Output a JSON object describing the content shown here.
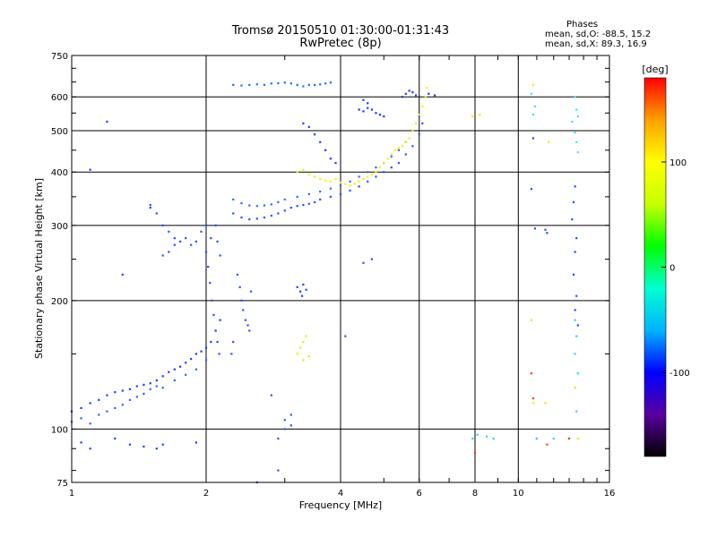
{
  "chart_data": {
    "type": "scatter",
    "title": "Tromsø 20150510 01:30:00-01:31:43",
    "subtitle": "RwPretec (8p)",
    "xlabel": "Frequency [MHz]",
    "ylabel": "Stationary phase Virtual Height [km]",
    "x_scale": "log",
    "y_scale": "log",
    "xlim": [
      1,
      16
    ],
    "ylim": [
      75,
      750
    ],
    "x_ticks": [
      "1",
      "2",
      "4",
      "6",
      "8",
      "10",
      "16"
    ],
    "y_ticks": [
      "75",
      "100",
      "200",
      "300",
      "400",
      "500",
      "600",
      "750"
    ],
    "grid": true,
    "phase_stats": {
      "header": "Phases",
      "o_line": "mean, sd,O: -88.5, 15.2",
      "x_line": "mean, sd,X: 89.3, 16.9"
    },
    "colorbar": {
      "label": "[deg]",
      "range": [
        -180,
        180
      ],
      "ticks": [
        "100",
        "0",
        "-100"
      ],
      "colors": [
        "#000000",
        "#5a00a0",
        "#0000ff",
        "#00b4ff",
        "#00ffd0",
        "#00ff00",
        "#c8ff00",
        "#ffff00",
        "#ffa000",
        "#ff0000"
      ]
    },
    "traces": [
      {
        "name": "",
        "color": "#1a3cff",
        "points": [
          [
            1.0,
            110
          ],
          [
            1.05,
            112
          ],
          [
            1.1,
            115
          ],
          [
            1.15,
            117
          ],
          [
            1.2,
            120
          ],
          [
            1.25,
            122
          ],
          [
            1.3,
            123
          ],
          [
            1.35,
            124
          ],
          [
            1.4,
            126
          ],
          [
            1.45,
            127
          ],
          [
            1.5,
            128
          ],
          [
            1.55,
            130
          ],
          [
            1.6,
            133
          ],
          [
            1.65,
            136
          ],
          [
            1.7,
            138
          ],
          [
            1.75,
            140
          ],
          [
            1.8,
            143
          ],
          [
            1.85,
            146
          ],
          [
            1.9,
            150
          ],
          [
            1.95,
            152
          ],
          [
            2.0,
            155
          ],
          [
            2.05,
            160
          ],
          [
            2.1,
            170
          ],
          [
            2.15,
            180
          ]
        ]
      },
      {
        "name": "",
        "color": "#2a4bff",
        "points": [
          [
            2.0,
            260
          ],
          [
            2.02,
            240
          ],
          [
            2.04,
            220
          ],
          [
            2.06,
            200
          ],
          [
            2.08,
            185
          ],
          [
            2.1,
            170
          ],
          [
            2.12,
            160
          ],
          [
            2.14,
            150
          ],
          [
            2.05,
            280
          ],
          [
            2.1,
            300
          ],
          [
            2.12,
            275
          ],
          [
            2.15,
            255
          ]
        ]
      },
      {
        "name": "",
        "color": "#2f4fff",
        "points": [
          [
            2.35,
            230
          ],
          [
            2.38,
            215
          ],
          [
            2.4,
            200
          ],
          [
            2.42,
            190
          ],
          [
            2.45,
            180
          ],
          [
            2.48,
            175
          ],
          [
            2.5,
            170
          ],
          [
            2.52,
            210
          ],
          [
            2.3,
            160
          ],
          [
            2.28,
            150
          ]
        ]
      },
      {
        "name": "",
        "color": "#2850ff",
        "points": [
          [
            1.5,
            335
          ],
          [
            1.55,
            320
          ],
          [
            1.6,
            300
          ],
          [
            1.65,
            290
          ],
          [
            1.7,
            280
          ],
          [
            1.75,
            275
          ],
          [
            1.8,
            280
          ],
          [
            1.85,
            270
          ],
          [
            1.9,
            275
          ],
          [
            1.95,
            290
          ],
          [
            2.0,
            300
          ],
          [
            1.6,
            255
          ],
          [
            1.65,
            260
          ],
          [
            1.7,
            270
          ]
        ]
      },
      {
        "name": "",
        "color": "#1e6cff",
        "points": [
          [
            2.3,
            640
          ],
          [
            2.4,
            638
          ],
          [
            2.5,
            640
          ],
          [
            2.6,
            642
          ],
          [
            2.7,
            640
          ],
          [
            2.8,
            645
          ],
          [
            2.9,
            646
          ],
          [
            3.0,
            648
          ],
          [
            3.1,
            645
          ],
          [
            3.2,
            640
          ],
          [
            3.3,
            635
          ],
          [
            3.4,
            640
          ],
          [
            3.5,
            640
          ],
          [
            3.6,
            642
          ],
          [
            3.7,
            645
          ],
          [
            3.8,
            648
          ]
        ]
      },
      {
        "name": "",
        "color": "#2255ff",
        "points": [
          [
            2.3,
            320
          ],
          [
            2.4,
            313
          ],
          [
            2.5,
            310
          ],
          [
            2.6,
            311
          ],
          [
            2.7,
            313
          ],
          [
            2.8,
            316
          ],
          [
            2.9,
            320
          ],
          [
            3.0,
            325
          ],
          [
            3.1,
            330
          ],
          [
            3.2,
            333
          ],
          [
            3.3,
            335
          ],
          [
            3.4,
            337
          ],
          [
            3.5,
            340
          ],
          [
            3.6,
            345
          ],
          [
            3.8,
            350
          ],
          [
            4.0,
            355
          ],
          [
            4.2,
            362
          ],
          [
            4.4,
            370
          ],
          [
            4.6,
            380
          ],
          [
            4.8,
            390
          ],
          [
            5.0,
            400
          ],
          [
            5.2,
            410
          ],
          [
            5.4,
            420
          ],
          [
            5.6,
            440
          ],
          [
            5.8,
            460
          ],
          [
            6.0,
            490
          ],
          [
            6.1,
            520
          ]
        ]
      },
      {
        "name": "",
        "color": "#2b6bff",
        "points": [
          [
            2.3,
            345
          ],
          [
            2.4,
            338
          ],
          [
            2.5,
            334
          ],
          [
            2.6,
            333
          ],
          [
            2.7,
            334
          ],
          [
            2.8,
            336
          ],
          [
            2.9,
            340
          ],
          [
            3.0,
            345
          ],
          [
            3.2,
            350
          ],
          [
            3.4,
            355
          ],
          [
            3.6,
            360
          ],
          [
            3.8,
            366
          ],
          [
            4.0,
            372
          ],
          [
            4.2,
            380
          ],
          [
            4.4,
            390
          ],
          [
            4.6,
            400
          ],
          [
            4.8,
            410
          ],
          [
            5.0,
            420
          ],
          [
            5.2,
            435
          ],
          [
            5.4,
            450
          ],
          [
            5.6,
            470
          ],
          [
            5.8,
            500
          ],
          [
            6.0,
            540
          ]
        ]
      },
      {
        "name": "",
        "color": "#f0f000",
        "points": [
          [
            3.2,
            400
          ],
          [
            3.3,
            405
          ],
          [
            3.4,
            395
          ],
          [
            3.5,
            390
          ],
          [
            3.6,
            385
          ],
          [
            3.7,
            382
          ],
          [
            3.8,
            380
          ],
          [
            3.9,
            385
          ],
          [
            4.0,
            378
          ],
          [
            4.1,
            375
          ],
          [
            4.2,
            372
          ],
          [
            4.3,
            376
          ],
          [
            4.4,
            380
          ],
          [
            4.5,
            385
          ],
          [
            4.6,
            390
          ],
          [
            4.7,
            395
          ],
          [
            4.8,
            400
          ],
          [
            4.9,
            410
          ],
          [
            5.0,
            420
          ],
          [
            5.1,
            430
          ],
          [
            5.2,
            440
          ],
          [
            5.3,
            450
          ],
          [
            5.4,
            455
          ],
          [
            5.5,
            460
          ],
          [
            5.6,
            470
          ],
          [
            5.7,
            480
          ],
          [
            5.8,
            500
          ],
          [
            5.9,
            520
          ],
          [
            6.0,
            545
          ],
          [
            6.1,
            570
          ],
          [
            6.2,
            600
          ],
          [
            6.25,
            630
          ]
        ]
      },
      {
        "name": "",
        "color": "#e6f000",
        "points": [
          [
            3.2,
            150
          ],
          [
            3.25,
            155
          ],
          [
            3.3,
            160
          ],
          [
            3.35,
            165
          ],
          [
            3.3,
            145
          ],
          [
            3.4,
            148
          ]
        ]
      },
      {
        "name": "",
        "color": "#2040ff",
        "points": [
          [
            3.2,
            215
          ],
          [
            3.25,
            210
          ],
          [
            3.3,
            218
          ],
          [
            3.35,
            212
          ],
          [
            3.28,
            205
          ]
        ]
      },
      {
        "name": "",
        "color": "#2036ff",
        "points": [
          [
            4.4,
            560
          ],
          [
            4.5,
            555
          ],
          [
            4.6,
            565
          ],
          [
            4.7,
            560
          ],
          [
            4.8,
            550
          ],
          [
            4.9,
            545
          ],
          [
            5.0,
            540
          ],
          [
            4.5,
            590
          ],
          [
            4.6,
            580
          ],
          [
            5.5,
            600
          ],
          [
            5.6,
            610
          ],
          [
            5.7,
            620
          ],
          [
            5.8,
            615
          ],
          [
            5.9,
            605
          ],
          [
            6.3,
            610
          ],
          [
            6.5,
            605
          ]
        ]
      },
      {
        "name": "",
        "color": "#1f3cff",
        "points": [
          [
            3.3,
            520
          ],
          [
            3.4,
            510
          ],
          [
            3.5,
            490
          ],
          [
            3.6,
            470
          ],
          [
            3.7,
            450
          ],
          [
            3.8,
            430
          ],
          [
            3.9,
            420
          ]
        ]
      },
      {
        "name": "",
        "color": "#2a64ff",
        "points": [
          [
            1.0,
            104
          ],
          [
            1.05,
            106
          ],
          [
            1.1,
            103
          ],
          [
            1.15,
            108
          ],
          [
            1.2,
            110
          ],
          [
            1.25,
            112
          ],
          [
            1.3,
            114
          ],
          [
            1.35,
            117
          ],
          [
            1.4,
            119
          ],
          [
            1.45,
            121
          ],
          [
            1.5,
            124
          ],
          [
            1.55,
            126
          ],
          [
            1.6,
            125
          ],
          [
            1.7,
            130
          ],
          [
            1.8,
            134
          ],
          [
            1.9,
            138
          ],
          [
            2.0,
            145
          ]
        ]
      },
      {
        "name": "",
        "color": "#1a40ff",
        "points": [
          [
            1.2,
            525
          ],
          [
            1.1,
            405
          ],
          [
            1.5,
            330
          ],
          [
            1.3,
            230
          ],
          [
            1.25,
            95
          ],
          [
            1.35,
            92
          ],
          [
            1.45,
            91
          ],
          [
            1.55,
            90
          ],
          [
            1.6,
            92
          ],
          [
            1.9,
            93
          ],
          [
            1.05,
            93
          ],
          [
            1.1,
            90
          ]
        ]
      },
      {
        "name": "",
        "color": "#40e0ff",
        "points": [
          [
            10.7,
            610
          ],
          [
            10.9,
            570
          ],
          [
            10.8,
            545
          ],
          [
            13.4,
            600
          ],
          [
            13.5,
            560
          ],
          [
            13.6,
            540
          ],
          [
            13.2,
            525
          ],
          [
            13.4,
            495
          ],
          [
            13.5,
            470
          ],
          [
            13.6,
            445
          ]
        ]
      },
      {
        "name": "",
        "color": "#1e50ff",
        "points": [
          [
            10.8,
            480
          ],
          [
            10.7,
            365
          ],
          [
            10.9,
            295
          ],
          [
            11.5,
            293
          ],
          [
            11.6,
            288
          ],
          [
            13.4,
            370
          ],
          [
            13.3,
            340
          ],
          [
            13.2,
            310
          ],
          [
            13.5,
            280
          ],
          [
            13.4,
            260
          ],
          [
            13.3,
            230
          ],
          [
            13.5,
            205
          ],
          [
            13.4,
            190
          ],
          [
            13.6,
            175
          ]
        ]
      },
      {
        "name": "",
        "color": "#ff3a1a",
        "points": [
          [
            8.0,
            88
          ],
          [
            11.6,
            92
          ],
          [
            11.0,
            95
          ],
          [
            13.0,
            95
          ],
          [
            10.7,
            135
          ],
          [
            10.8,
            118
          ]
        ]
      },
      {
        "name": "",
        "color": "#ffe000",
        "points": [
          [
            10.7,
            180
          ],
          [
            10.8,
            115
          ],
          [
            11.5,
            115
          ],
          [
            13.4,
            125
          ],
          [
            13.6,
            95
          ],
          [
            7.9,
            540
          ],
          [
            8.2,
            545
          ],
          [
            10.8,
            640
          ],
          [
            11.7,
            470
          ]
        ]
      },
      {
        "name": "",
        "color": "#30d0ff",
        "points": [
          [
            7.9,
            95
          ],
          [
            8.1,
            97
          ],
          [
            8.5,
            96
          ],
          [
            8.8,
            95
          ],
          [
            11.0,
            95
          ],
          [
            12.0,
            95
          ],
          [
            13.5,
            110
          ],
          [
            13.6,
            135
          ],
          [
            13.4,
            150
          ],
          [
            13.5,
            165
          ],
          [
            13.4,
            180
          ]
        ]
      },
      {
        "name": "",
        "color": "#3050ff",
        "points": [
          [
            2.8,
            120
          ],
          [
            2.9,
            95
          ],
          [
            3.0,
            100
          ],
          [
            3.1,
            102
          ],
          [
            2.6,
            75
          ],
          [
            2.9,
            80
          ],
          [
            3.0,
            105
          ],
          [
            3.1,
            108
          ],
          [
            4.7,
            250
          ],
          [
            4.5,
            245
          ],
          [
            4.1,
            165
          ]
        ]
      }
    ]
  }
}
